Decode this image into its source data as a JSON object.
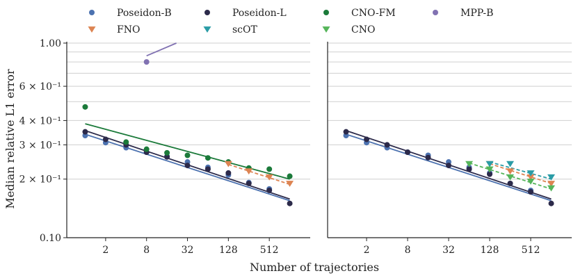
{
  "chart_data": {
    "type": "scatter",
    "xlabel": "Number of trajectories",
    "ylabel": "Median relative L1 error",
    "yscale": "log",
    "xscale": "log2",
    "ylim": [
      0.1,
      1.0
    ],
    "xlim_log2": [
      -0.9,
      11.0
    ],
    "xticks": [
      2,
      8,
      32,
      128,
      512
    ],
    "xtick_labels": [
      "2",
      "8",
      "32",
      "128",
      "512"
    ],
    "yticks": [
      {
        "value": 0.1,
        "label": "0.10"
      },
      {
        "value": 0.2,
        "label": "2 × 10⁻¹"
      },
      {
        "value": 0.3,
        "label": "3 × 10⁻¹"
      },
      {
        "value": 0.4,
        "label": "4 × 10⁻¹"
      },
      {
        "value": 0.6,
        "label": "6 × 10⁻¹"
      },
      {
        "value": 1.0,
        "label": "1.00"
      }
    ],
    "grid": "horizontal",
    "legend": [
      {
        "name": "Poseidon-B",
        "color": "#4c72b0",
        "marker": "circle"
      },
      {
        "name": "Poseidon-L",
        "color": "#2c2a4a",
        "marker": "circle"
      },
      {
        "name": "CNO-FM",
        "color": "#1b7a3a",
        "marker": "circle"
      },
      {
        "name": "MPP-B",
        "color": "#8172b2",
        "marker": "circle"
      },
      {
        "name": "FNO",
        "color": "#dd8452",
        "marker": "triangle-down"
      },
      {
        "name": "scOT",
        "color": "#2a9ca6",
        "marker": "triangle-down"
      },
      {
        "name": "CNO",
        "color": "#55b55a",
        "marker": "triangle-down"
      }
    ],
    "panels": [
      {
        "name": "left",
        "series": [
          {
            "name": "Poseidon-B",
            "color": "#4c72b0",
            "marker": "circle",
            "x": [
              1,
              2,
              4,
              8,
              16,
              32,
              64,
              128,
              256,
              512
            ],
            "y": [
              0.335,
              0.308,
              0.29,
              0.275,
              0.262,
              0.245,
              0.23,
              0.21,
              0.192,
              0.178
            ],
            "fit": {
              "x": [
                1,
                1024
              ],
              "y": [
                0.34,
                0.155
              ]
            },
            "fit_style": "solid"
          },
          {
            "name": "Poseidon-L",
            "color": "#2c2a4a",
            "marker": "circle",
            "x": [
              1,
              2,
              4,
              8,
              16,
              32,
              64,
              128,
              256,
              512,
              1024
            ],
            "y": [
              0.35,
              0.32,
              0.3,
              0.275,
              0.26,
              0.235,
              0.225,
              0.215,
              0.19,
              0.175,
              0.15
            ],
            "fit": {
              "x": [
                1,
                1024
              ],
              "y": [
                0.355,
                0.158
              ]
            },
            "fit_style": "solid"
          },
          {
            "name": "CNO-FM",
            "color": "#1b7a3a",
            "marker": "circle",
            "x": [
              1,
              4,
              8,
              16,
              32,
              64,
              128,
              256,
              512,
              1024
            ],
            "y": [
              0.47,
              0.31,
              0.285,
              0.273,
              0.265,
              0.257,
              0.245,
              0.228,
              0.225,
              0.207
            ],
            "fit": {
              "x": [
                1,
                1024
              ],
              "y": [
                0.385,
                0.2
              ]
            },
            "fit_style": "solid"
          },
          {
            "name": "MPP-B",
            "color": "#8172b2",
            "marker": "circle",
            "x": [
              8
            ],
            "y": [
              0.8
            ],
            "fit": {
              "x": [
                8,
                22
              ],
              "y": [
                0.86,
                1.0
              ]
            },
            "fit_style": "solid"
          },
          {
            "name": "FNO",
            "color": "#dd8452",
            "marker": "triangle-down",
            "x": [
              128,
              256,
              512,
              1024
            ],
            "y": [
              0.24,
              0.22,
              0.205,
              0.19
            ],
            "fit": {
              "x": [
                128,
                1024
              ],
              "y": [
                0.238,
                0.188
              ]
            },
            "fit_style": "dashed"
          }
        ]
      },
      {
        "name": "right",
        "series": [
          {
            "name": "Poseidon-B",
            "color": "#4c72b0",
            "marker": "circle",
            "x": [
              1,
              2,
              4,
              8,
              16,
              32,
              64,
              128,
              256,
              512
            ],
            "y": [
              0.335,
              0.308,
              0.29,
              0.275,
              0.265,
              0.245,
              0.23,
              0.215,
              0.19,
              0.175
            ],
            "fit": {
              "x": [
                1,
                1024
              ],
              "y": [
                0.34,
                0.155
              ]
            },
            "fit_style": "solid"
          },
          {
            "name": "Poseidon-L",
            "color": "#2c2a4a",
            "marker": "circle",
            "x": [
              1,
              2,
              4,
              8,
              16,
              32,
              64,
              128,
              256,
              512,
              1024
            ],
            "y": [
              0.35,
              0.32,
              0.3,
              0.275,
              0.258,
              0.235,
              0.225,
              0.212,
              0.19,
              0.172,
              0.15
            ],
            "fit": {
              "x": [
                1,
                1024
              ],
              "y": [
                0.355,
                0.158
              ]
            },
            "fit_style": "solid"
          },
          {
            "name": "FNO",
            "color": "#dd8452",
            "marker": "triangle-down",
            "x": [
              128,
              256,
              512,
              1024
            ],
            "y": [
              0.24,
              0.22,
              0.205,
              0.19
            ],
            "fit": {
              "x": [
                128,
                1024
              ],
              "y": [
                0.24,
                0.19
              ]
            },
            "fit_style": "dashed"
          },
          {
            "name": "scOT",
            "color": "#2a9ca6",
            "marker": "triangle-down",
            "x": [
              128,
              256,
              512,
              1024
            ],
            "y": [
              0.24,
              0.24,
              0.215,
              0.205
            ],
            "fit": {
              "x": [
                128,
                1024
              ],
              "y": [
                0.245,
                0.2
              ]
            },
            "fit_style": "dashed"
          },
          {
            "name": "CNO",
            "color": "#55b55a",
            "marker": "triangle-down",
            "x": [
              64,
              128,
              256,
              512,
              1024
            ],
            "y": [
              0.24,
              0.225,
              0.205,
              0.195,
              0.18
            ],
            "fit": {
              "x": [
                64,
                1024
              ],
              "y": [
                0.242,
                0.178
              ]
            },
            "fit_style": "dashed"
          }
        ]
      }
    ]
  }
}
